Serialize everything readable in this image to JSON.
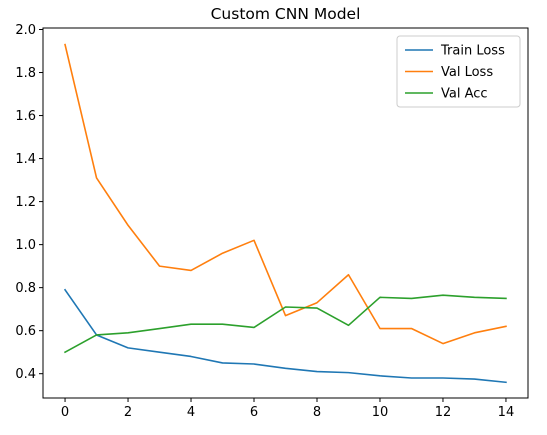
{
  "chart_data": {
    "type": "line",
    "title": "Custom CNN Model",
    "xlabel": "",
    "ylabel": "",
    "xlim": [
      -0.7,
      14.7
    ],
    "ylim": [
      0.287,
      2.007
    ],
    "xticks": [
      0,
      2,
      4,
      6,
      8,
      10,
      12,
      14
    ],
    "yticks": [
      0.4,
      0.6,
      0.8,
      1.0,
      1.2,
      1.4,
      1.6,
      1.8,
      2.0
    ],
    "ytick_labels": [
      "0.4",
      "0.6",
      "0.8",
      "1.0",
      "1.2",
      "1.4",
      "1.6",
      "1.8",
      "2.0"
    ],
    "grid": false,
    "legend_position": "top-right",
    "x": [
      0,
      1,
      2,
      3,
      4,
      5,
      6,
      7,
      8,
      9,
      10,
      11,
      12,
      13,
      14
    ],
    "series": [
      {
        "name": "Train Loss",
        "color": "#1f77b4",
        "values": [
          0.79,
          0.58,
          0.52,
          0.5,
          0.48,
          0.45,
          0.445,
          0.425,
          0.41,
          0.405,
          0.39,
          0.38,
          0.38,
          0.375,
          0.36
        ]
      },
      {
        "name": "Val Loss",
        "color": "#ff7f0e",
        "values": [
          1.93,
          1.31,
          1.09,
          0.9,
          0.88,
          0.96,
          1.02,
          0.67,
          0.73,
          0.86,
          0.61,
          0.61,
          0.54,
          0.59,
          0.62
        ]
      },
      {
        "name": "Val Acc",
        "color": "#2ca02c",
        "values": [
          0.5,
          0.58,
          0.59,
          0.61,
          0.63,
          0.63,
          0.615,
          0.71,
          0.705,
          0.625,
          0.755,
          0.75,
          0.765,
          0.755,
          0.75
        ]
      }
    ]
  }
}
